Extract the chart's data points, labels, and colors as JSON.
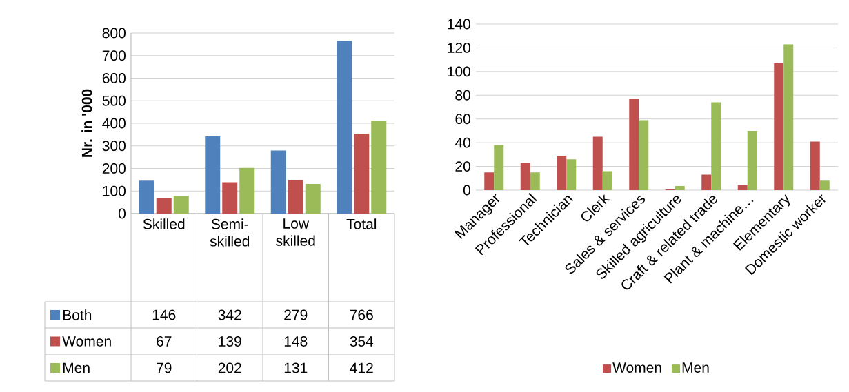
{
  "chart_data": [
    {
      "type": "bar",
      "ylabel": "Nr. in '000",
      "categories": [
        "Skilled",
        "Semi-skilled",
        "Low skilled",
        "Total"
      ],
      "series": [
        {
          "name": "Both",
          "color": "#4f81bd",
          "values": [
            146,
            342,
            279,
            766
          ]
        },
        {
          "name": "Women",
          "color": "#c0504d",
          "values": [
            67,
            139,
            148,
            354
          ]
        },
        {
          "name": "Men",
          "color": "#9bbb59",
          "values": [
            79,
            202,
            131,
            412
          ]
        }
      ],
      "ylim": [
        0,
        800
      ],
      "yticks": [
        0,
        100,
        200,
        300,
        400,
        500,
        600,
        700,
        800
      ],
      "grid": "y",
      "data_labels": true,
      "legend": "bottom left"
    },
    {
      "type": "bar",
      "categories": [
        "Manager",
        "Professional",
        "Technician",
        "Clerk",
        "Sales & services",
        "Skilled agriculture",
        "Craft & related trade",
        "Plant & machine…",
        "Elementary",
        "Domestic worker"
      ],
      "series": [
        {
          "name": "Women",
          "color": "#c0504d",
          "values": [
            15,
            23,
            29,
            45,
            77,
            0.7,
            13,
            4,
            107,
            41
          ]
        },
        {
          "name": "Men",
          "color": "#9bbb59",
          "values": [
            38,
            15,
            26,
            16,
            59,
            3.5,
            74,
            50,
            123,
            8
          ]
        }
      ],
      "ylim": [
        0,
        140
      ],
      "yticks": [
        0,
        20,
        40,
        60,
        80,
        100,
        120,
        140
      ],
      "grid": "y",
      "legend": "bottom"
    }
  ]
}
